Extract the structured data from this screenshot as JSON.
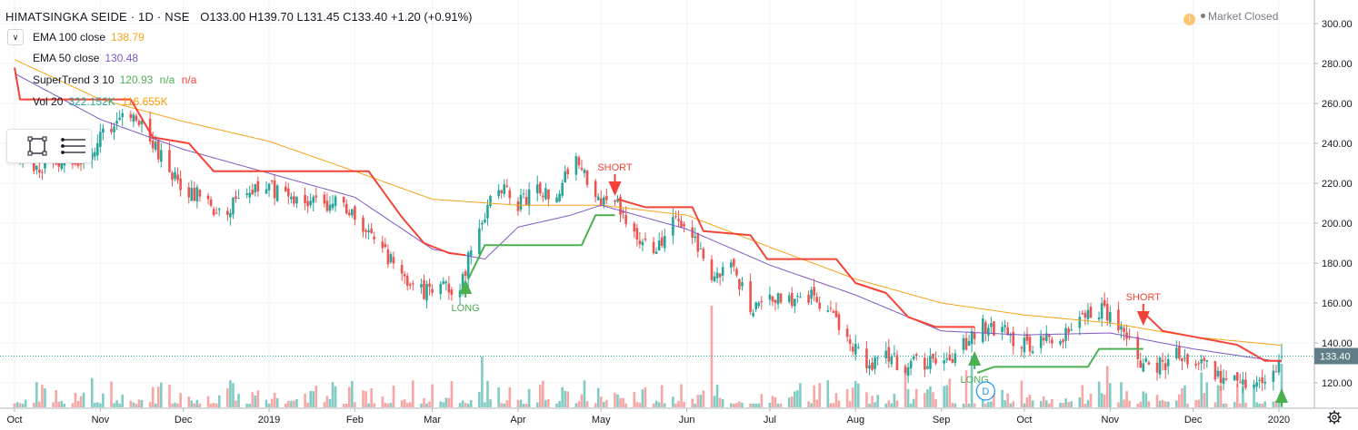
{
  "symbol": {
    "name": "HIMATSINGKA SEIDE",
    "interval": "1D",
    "exchange": "NSE",
    "title_text": "HIMATSINGKA SEIDE · 1D · NSE",
    "o_label": "O",
    "o_value": "133.00",
    "h_label": "H",
    "h_value": "139.70",
    "l_label": "L",
    "l_value": "131.45",
    "c_label": "C",
    "c_value": "133.40",
    "change": "+1.20 (+0.91%)"
  },
  "legend": {
    "collapse_icon": "chevron-down-icon",
    "ema100": {
      "name": "EMA 100 close",
      "value": "138.79",
      "color": "#f7a21b"
    },
    "ema50": {
      "name": "EMA 50 close",
      "value": "130.48",
      "color": "#7e57c2"
    },
    "supertrend": {
      "name": "SuperTrend 3 10",
      "value": "120.93",
      "na1": "n/a",
      "na2": "n/a",
      "up_color": "#4caf50",
      "down_color": "#f44336"
    },
    "volume": {
      "name": "Vol 20",
      "value": "322.152K",
      "ma_value": "116.655K",
      "color": "#26a69a",
      "ma_color": "#ff9800"
    }
  },
  "market_status": {
    "icon": "exclamation-icon",
    "text": "Market Closed"
  },
  "drawing_toolbar": {
    "icons": [
      "rectangle-icon",
      "menu-lines-icon"
    ]
  },
  "settings_icon": "gear-icon",
  "colors": {
    "up": "#26a69a",
    "down": "#ef5350",
    "up_vol": "#80cbc4",
    "down_vol": "#f7a6a4",
    "ema100": "#f7a21b",
    "ema50": "#7e57c2",
    "st_up": "#4caf50",
    "st_down": "#f44336",
    "last_price_bg": "#617d87"
  },
  "price_axis": {
    "ticks": [
      "300.00",
      "280.00",
      "260.00",
      "240.00",
      "220.00",
      "200.00",
      "180.00",
      "160.00",
      "140.00",
      "120.00"
    ],
    "last_price": "133.40"
  },
  "time_axis": {
    "ticks": [
      "Oct",
      "Nov",
      "Dec",
      "2019",
      "Feb",
      "Mar",
      "Apr",
      "May",
      "Jun",
      "Jul",
      "Aug",
      "Sep",
      "Oct",
      "Nov",
      "Dec",
      "2020"
    ]
  },
  "chart_data": {
    "type": "candlestick",
    "title": "HIMATSINGKA SEIDE · 1D · NSE",
    "x_range": [
      "2018-10",
      "2020-01"
    ],
    "ylim": [
      115,
      305
    ],
    "legend_placement": "top-left",
    "grid": true,
    "series": [
      {
        "name": "HIMATSINGKA SEIDE",
        "kind": "price",
        "anchors": [
          [
            "2018-10-01",
            237
          ],
          [
            "2018-10-08",
            228
          ],
          [
            "2018-10-15",
            227
          ],
          [
            "2018-10-22",
            230
          ],
          [
            "2018-10-29",
            238
          ],
          [
            "2018-11-05",
            248
          ],
          [
            "2018-11-12",
            255
          ],
          [
            "2018-11-19",
            241
          ],
          [
            "2018-11-26",
            226
          ],
          [
            "2018-12-03",
            217
          ],
          [
            "2018-12-10",
            209
          ],
          [
            "2018-12-17",
            206
          ],
          [
            "2018-12-24",
            218
          ],
          [
            "2018-12-31",
            218
          ],
          [
            "2019-01-07",
            214
          ],
          [
            "2019-01-14",
            212
          ],
          [
            "2019-01-21",
            211
          ],
          [
            "2019-01-28",
            208
          ],
          [
            "2019-02-04",
            200
          ],
          [
            "2019-02-11",
            187
          ],
          [
            "2019-02-18",
            175
          ],
          [
            "2019-02-25",
            166
          ],
          [
            "2019-03-04",
            166
          ],
          [
            "2019-03-11",
            170
          ],
          [
            "2019-03-18",
            196
          ],
          [
            "2019-03-25",
            219
          ],
          [
            "2019-04-01",
            210
          ],
          [
            "2019-04-08",
            215
          ],
          [
            "2019-04-15",
            217
          ],
          [
            "2019-04-22",
            232
          ],
          [
            "2019-04-29",
            214
          ],
          [
            "2019-05-06",
            210
          ],
          [
            "2019-05-13",
            196
          ],
          [
            "2019-05-20",
            184
          ],
          [
            "2019-05-27",
            202
          ],
          [
            "2019-06-03",
            197
          ],
          [
            "2019-06-10",
            172
          ],
          [
            "2019-06-17",
            178
          ],
          [
            "2019-06-24",
            158
          ],
          [
            "2019-07-01",
            163
          ],
          [
            "2019-07-08",
            160
          ],
          [
            "2019-07-15",
            164
          ],
          [
            "2019-07-22",
            158
          ],
          [
            "2019-07-29",
            144
          ],
          [
            "2019-08-05",
            128
          ],
          [
            "2019-08-12",
            133
          ],
          [
            "2019-08-19",
            128
          ],
          [
            "2019-08-26",
            131
          ],
          [
            "2019-09-02",
            128
          ],
          [
            "2019-09-09",
            140
          ],
          [
            "2019-09-16",
            148
          ],
          [
            "2019-09-23",
            147
          ],
          [
            "2019-09-30",
            139
          ],
          [
            "2019-10-07",
            140
          ],
          [
            "2019-10-14",
            142
          ],
          [
            "2019-10-21",
            154
          ],
          [
            "2019-10-28",
            157
          ],
          [
            "2019-11-04",
            150
          ],
          [
            "2019-11-11",
            132
          ],
          [
            "2019-11-18",
            128
          ],
          [
            "2019-11-25",
            134
          ],
          [
            "2019-12-02",
            130
          ],
          [
            "2019-12-09",
            125
          ],
          [
            "2019-12-16",
            122
          ],
          [
            "2019-12-23",
            121
          ],
          [
            "2019-12-30",
            126
          ],
          [
            "2020-01-02",
            133.4
          ]
        ]
      },
      {
        "name": "EMA 100 close",
        "anchors": [
          [
            "2018-10-01",
            282
          ],
          [
            "2018-11-01",
            262
          ],
          [
            "2018-12-01",
            251
          ],
          [
            "2019-01-01",
            241
          ],
          [
            "2019-02-01",
            226
          ],
          [
            "2019-03-01",
            212
          ],
          [
            "2019-04-01",
            209
          ],
          [
            "2019-05-01",
            209
          ],
          [
            "2019-06-01",
            204
          ],
          [
            "2019-07-01",
            188
          ],
          [
            "2019-08-01",
            172
          ],
          [
            "2019-09-01",
            160
          ],
          [
            "2019-10-01",
            154
          ],
          [
            "2019-11-01",
            150
          ],
          [
            "2019-12-01",
            143
          ],
          [
            "2020-01-02",
            138.79
          ]
        ]
      },
      {
        "name": "EMA 50 close",
        "anchors": [
          [
            "2018-10-01",
            275
          ],
          [
            "2018-11-01",
            252
          ],
          [
            "2018-12-01",
            237
          ],
          [
            "2019-01-01",
            225
          ],
          [
            "2019-02-01",
            213
          ],
          [
            "2019-03-01",
            187
          ],
          [
            "2019-03-20",
            182
          ],
          [
            "2019-04-01",
            198
          ],
          [
            "2019-04-20",
            204
          ],
          [
            "2019-05-01",
            209
          ],
          [
            "2019-06-01",
            197
          ],
          [
            "2019-07-01",
            179
          ],
          [
            "2019-08-01",
            164
          ],
          [
            "2019-09-01",
            146
          ],
          [
            "2019-10-01",
            144
          ],
          [
            "2019-11-01",
            145
          ],
          [
            "2019-12-01",
            137
          ],
          [
            "2020-01-02",
            130.48
          ]
        ]
      },
      {
        "name": "SuperTrend 3 10",
        "segments": [
          {
            "trend": "down",
            "points": [
              [
                "2018-10-01",
                278
              ],
              [
                "2018-10-03",
                262
              ],
              [
                "2018-11-12",
                262
              ],
              [
                "2018-11-20",
                243
              ],
              [
                "2018-12-03",
                240
              ],
              [
                "2018-12-12",
                226
              ],
              [
                "2019-02-06",
                226
              ],
              [
                "2019-02-18",
                203
              ],
              [
                "2019-02-26",
                190
              ],
              [
                "2019-03-07",
                185
              ],
              [
                "2019-03-13",
                184
              ]
            ]
          },
          {
            "trend": "up",
            "points": [
              [
                "2019-03-14",
                172
              ],
              [
                "2019-03-20",
                189
              ],
              [
                "2019-04-24",
                189
              ],
              [
                "2019-04-29",
                204
              ],
              [
                "2019-05-06",
                204
              ]
            ]
          },
          {
            "trend": "down",
            "points": [
              [
                "2019-05-07",
                212
              ],
              [
                "2019-05-17",
                208
              ],
              [
                "2019-06-03",
                208
              ],
              [
                "2019-06-07",
                196
              ],
              [
                "2019-06-24",
                194
              ],
              [
                "2019-06-30",
                182
              ],
              [
                "2019-07-25",
                182
              ],
              [
                "2019-08-01",
                170
              ],
              [
                "2019-08-12",
                165
              ],
              [
                "2019-08-20",
                153
              ],
              [
                "2019-08-30",
                148
              ],
              [
                "2019-09-13",
                148
              ]
            ]
          },
          {
            "trend": "up",
            "points": [
              [
                "2019-09-14",
                125
              ],
              [
                "2019-09-20",
                128
              ],
              [
                "2019-10-24",
                128
              ],
              [
                "2019-10-28",
                137
              ],
              [
                "2019-11-13",
                137
              ]
            ]
          },
          {
            "trend": "down",
            "points": [
              [
                "2019-11-14",
                154
              ],
              [
                "2019-11-20",
                146
              ],
              [
                "2019-12-17",
                139
              ],
              [
                "2019-12-27",
                131
              ],
              [
                "2020-01-02",
                131
              ]
            ]
          },
          {
            "trend": "up",
            "points": [
              [
                "2020-01-02",
                121
              ]
            ]
          }
        ],
        "signals": [
          {
            "type": "LONG",
            "date": "2019-03-13"
          },
          {
            "type": "SHORT",
            "date": "2019-05-06"
          },
          {
            "type": "LONG",
            "date": "2019-09-13"
          },
          {
            "type": "SHORT",
            "date": "2019-11-13"
          },
          {
            "type": "LONG",
            "date": "2020-01-02"
          }
        ]
      },
      {
        "name": "Vol 20",
        "kind": "volume",
        "notable": [
          [
            "2019-03-19",
            "tall"
          ],
          [
            "2019-06-10",
            "very tall"
          ],
          [
            "2019-09-12",
            "tall"
          ],
          [
            "2020-01-02",
            "322.152K"
          ]
        ],
        "ma": "116.655K"
      }
    ],
    "event_marker": {
      "label": "D",
      "date": "2019-09-17"
    }
  }
}
